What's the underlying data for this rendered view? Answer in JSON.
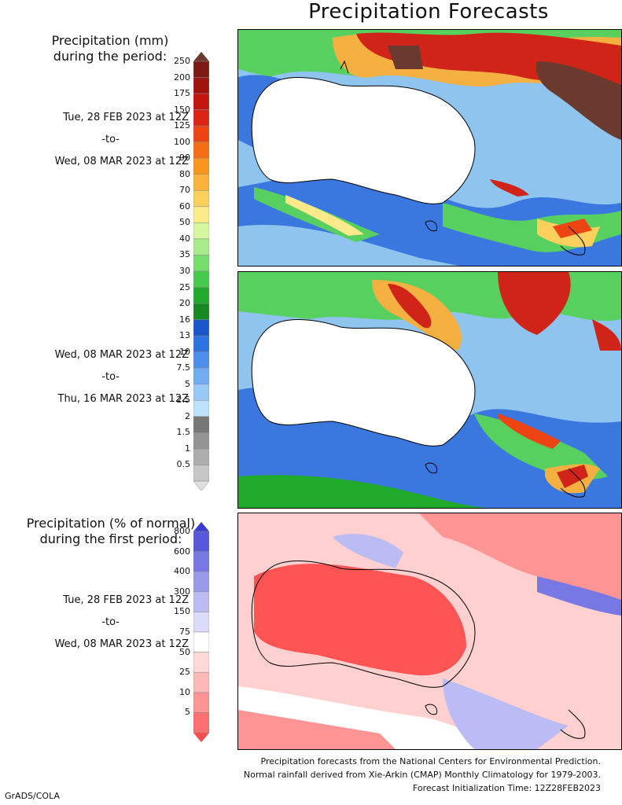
{
  "title": "Precipitation Forecasts",
  "panel_mm": {
    "heading_line1": "Precipitation (mm)",
    "heading_line2": "during the period:",
    "period1": {
      "start": "Tue, 28 FEB 2023 at 12Z",
      "sep": "-to-",
      "end": "Wed, 08 MAR 2023 at 12Z"
    },
    "period2": {
      "start": "Wed, 08 MAR 2023 at 12Z",
      "sep": "-to-",
      "end": "Thu, 16 MAR 2023 at 12Z"
    },
    "colorbar": {
      "labels": [
        "250",
        "200",
        "175",
        "150",
        "125",
        "100",
        "90",
        "80",
        "70",
        "60",
        "50",
        "40",
        "35",
        "30",
        "25",
        "20",
        "16",
        "13",
        "10",
        "7.5",
        "5",
        "2.5",
        "2",
        "1.5",
        "1",
        "0.5"
      ],
      "colors": [
        "#6a3a2e",
        "#7a1a12",
        "#a0140e",
        "#c4140e",
        "#dc2414",
        "#ee4414",
        "#f46e14",
        "#f8961e",
        "#fbb33c",
        "#fbd05c",
        "#fbe98a",
        "#d6f6a0",
        "#a6ec8a",
        "#76de6a",
        "#46ca4c",
        "#20aa2c",
        "#148a20",
        "#1a56c8",
        "#2e74e0",
        "#4c90ec",
        "#70acf2",
        "#98c8f6",
        "#bde3fb",
        "#777777",
        "#939393",
        "#adadad",
        "#c7c7c7",
        "#dedede"
      ]
    }
  },
  "panel_pct": {
    "heading_line1": "Precipitation (% of normal)",
    "heading_line2": "during the first period:",
    "period": {
      "start": "Tue, 28 FEB 2023 at 12Z",
      "sep": "-to-",
      "end": "Wed, 08 MAR 2023 at 12Z"
    },
    "colorbar": {
      "labels": [
        "800",
        "600",
        "400",
        "300",
        "150",
        "75",
        "50",
        "25",
        "10",
        "5"
      ],
      "colors": [
        "#3a3ad0",
        "#5858dc",
        "#7878e4",
        "#9a9aec",
        "#bcbcf4",
        "#dcdcfa",
        "#ffffff",
        "#ffd8d8",
        "#ffb8b8",
        "#ff9494",
        "#ff7070",
        "#ff4c4c"
      ]
    }
  },
  "footer": {
    "line1": "Precipitation forecasts from the National Centers for Environmental Prediction.",
    "line2": "Normal rainfall derived from Xie-Arkin (CMAP) Monthly Climatology for 1979-2003.",
    "line3": "Forecast Initialization Time: 12Z28FEB2023"
  },
  "credit": "GrADS/COLA"
}
